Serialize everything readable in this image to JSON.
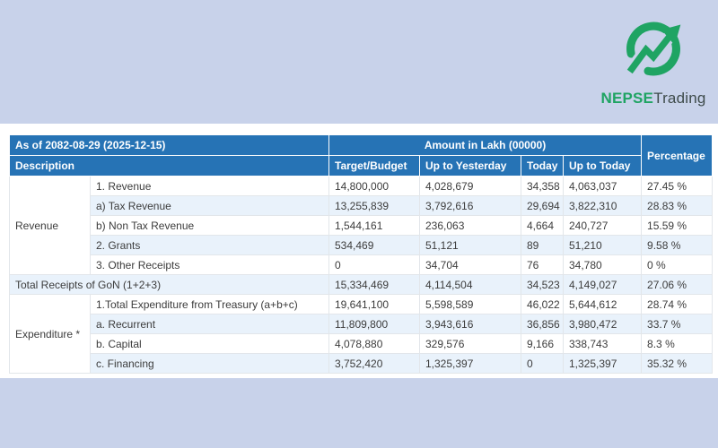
{
  "theme": {
    "page_bg": "#c8d2ea",
    "band_bg": "#ffffff",
    "header_bg": "#2673b5",
    "header_fg": "#ffffff",
    "alt_row_bg": "#e9f2fb",
    "cell_border": "#e2e6ea",
    "text": "#3c3c3c",
    "logo_green": "#1fa463",
    "logo_dark": "#3e4b4b"
  },
  "logo": {
    "icon": "trending-up-arrow-circle",
    "brand_bold": "NEPSE",
    "brand_regular": "Trading"
  },
  "table": {
    "as_of": "As of 2082-08-29 (2025-12-15)",
    "amount_header": "Amount in Lakh (00000)",
    "percentage_header": "Percentage",
    "description_header": "Description",
    "columns": [
      "Target/Budget",
      "Up to Yesterday",
      "Today",
      "Up to Today"
    ],
    "rows": [
      {
        "group": "Revenue",
        "group_rowspan": 5,
        "item": "1. Revenue",
        "values": [
          "14,800,000",
          "4,028,679",
          "34,358",
          "4,063,037",
          "27.45 %"
        ]
      },
      {
        "item": "a) Tax Revenue",
        "values": [
          "13,255,839",
          "3,792,616",
          "29,694",
          "3,822,310",
          "28.83 %"
        ]
      },
      {
        "item": "b) Non Tax Revenue",
        "values": [
          "1,544,161",
          "236,063",
          "4,664",
          "240,727",
          "15.59 %"
        ]
      },
      {
        "item": "2. Grants",
        "values": [
          "534,469",
          "51,121",
          "89",
          "51,210",
          "9.58 %"
        ]
      },
      {
        "item": "3. Other Receipts",
        "values": [
          "0",
          "34,704",
          "76",
          "34,780",
          "0 %"
        ]
      },
      {
        "item": "Total Receipts of GoN (1+2+3)",
        "colspan": 2,
        "values": [
          "15,334,469",
          "4,114,504",
          "34,523",
          "4,149,027",
          "27.06 %"
        ]
      },
      {
        "group": "Expenditure *",
        "group_rowspan": 4,
        "item": "1.Total Expenditure from Treasury (a+b+c)",
        "values": [
          "19,641,100",
          "5,598,589",
          "46,022",
          "5,644,612",
          "28.74 %"
        ]
      },
      {
        "item": "a. Recurrent",
        "values": [
          "11,809,800",
          "3,943,616",
          "36,856",
          "3,980,472",
          "33.7 %"
        ]
      },
      {
        "item": "b. Capital",
        "values": [
          "4,078,880",
          "329,576",
          "9,166",
          "338,743",
          "8.3 %"
        ]
      },
      {
        "item": "c. Financing",
        "values": [
          "3,752,420",
          "1,325,397",
          "0",
          "1,325,397",
          "35.32 %"
        ]
      }
    ]
  }
}
